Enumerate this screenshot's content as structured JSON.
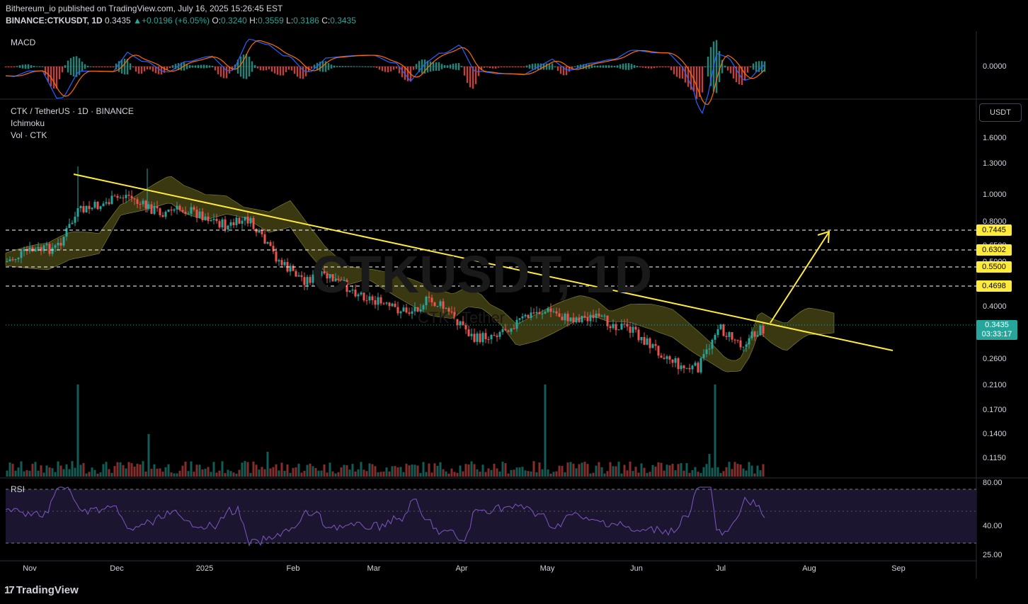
{
  "header": {
    "publisher": "Bithereum_io published on TradingView.com, July 16, 2025 15:26:45 EST",
    "symbol": "BINANCE:CTKUSDT, 1D",
    "last": "0.3435",
    "change": "+0.0196 (+6.05%)",
    "o_label": "O:",
    "o": "0.3240",
    "h_label": "H:",
    "h": "0.3559",
    "l_label": "L:",
    "l": "0.3186",
    "c_label": "C:",
    "c": "0.3435"
  },
  "macd": {
    "label": "MACD",
    "zero_label": "0.0000"
  },
  "main": {
    "title": "CTK / TetherUS · 1D · BINANCE",
    "ind1": "Ichimoku",
    "ind2": "Vol · CTK",
    "currency_button": "USDT",
    "watermark": "CTKUSDT, 1D",
    "watermark_sub": "CTK / Tether",
    "price_axis": [
      "1.6000",
      "1.3000",
      "1.0000",
      "0.8000",
      "0.6500",
      "0.5000",
      "0.4000",
      "0.2600",
      "0.2100",
      "0.1700",
      "0.1400",
      "0.1150"
    ],
    "levels": [
      "0.7445",
      "0.6302",
      "0.5500",
      "0.4698"
    ],
    "current_price": "0.3435",
    "countdown": "03:33:17"
  },
  "rsi": {
    "label": "RSI",
    "axis": [
      "80.00",
      "40.00",
      "25.00"
    ]
  },
  "time_axis": [
    "Nov",
    "Dec",
    "2025",
    "Feb",
    "Mar",
    "Apr",
    "May",
    "Jun",
    "Jul",
    "Aug",
    "Sep"
  ],
  "footer": {
    "logo_text": "TradingView"
  },
  "colors": {
    "up": "#26a69a",
    "down": "#ef5350",
    "trend": "#ffeb3b",
    "cloud": "#4e4b16",
    "macd": "#2962ff",
    "signal": "#ff6d00",
    "rsi": "#7e57c2"
  }
}
